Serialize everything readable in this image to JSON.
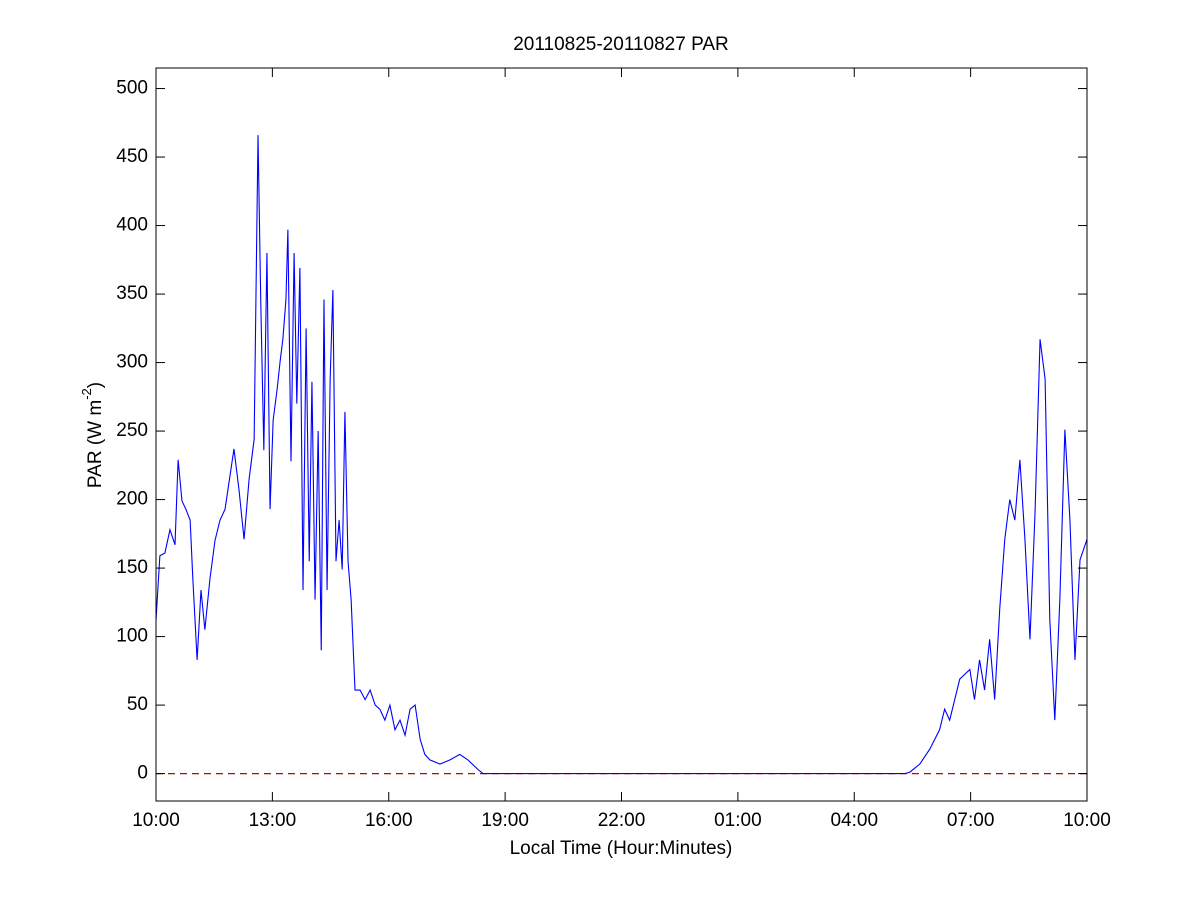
{
  "chart_data": {
    "type": "line",
    "title": "20110825-20110827 PAR",
    "xlabel": "Local Time (Hour:Minutes)",
    "ylabel": [
      "PAR (W m",
      "-2",
      ")"
    ],
    "color": "#0000ff",
    "xlim": [
      0,
      24
    ],
    "ylim": [
      -20,
      515
    ],
    "xticks": [
      {
        "value": 0,
        "label": "10:00"
      },
      {
        "value": 3,
        "label": "13:00"
      },
      {
        "value": 6,
        "label": "16:00"
      },
      {
        "value": 9,
        "label": "19:00"
      },
      {
        "value": 12,
        "label": "22:00"
      },
      {
        "value": 15,
        "label": "01:00"
      },
      {
        "value": 18,
        "label": "04:00"
      },
      {
        "value": 21,
        "label": "07:00"
      },
      {
        "value": 24,
        "label": "10:00"
      }
    ],
    "yticks": [
      0,
      50,
      100,
      150,
      200,
      250,
      300,
      350,
      400,
      450,
      500
    ],
    "zero_line": {
      "value": 0,
      "color": "#cc0000",
      "dashed": true
    },
    "x": [
      0.0,
      0.1,
      0.23,
      0.36,
      0.49,
      0.57,
      0.67,
      0.77,
      0.88,
      0.95,
      1.06,
      1.16,
      1.26,
      1.39,
      1.52,
      1.65,
      1.78,
      2.01,
      2.14,
      2.27,
      2.4,
      2.53,
      2.63,
      2.7,
      2.78,
      2.86,
      2.94,
      3.02,
      3.12,
      3.2,
      3.27,
      3.35,
      3.4,
      3.48,
      3.56,
      3.63,
      3.71,
      3.79,
      3.87,
      3.95,
      4.02,
      4.1,
      4.18,
      4.26,
      4.33,
      4.41,
      4.49,
      4.56,
      4.64,
      4.72,
      4.8,
      4.87,
      4.95,
      5.03,
      5.13,
      5.26,
      5.39,
      5.52,
      5.65,
      5.77,
      5.9,
      6.03,
      6.16,
      6.29,
      6.42,
      6.55,
      6.68,
      6.81,
      6.93,
      7.06,
      7.32,
      7.58,
      7.83,
      8.04,
      8.3,
      8.43,
      10,
      14,
      18,
      19.3,
      19.43,
      19.69,
      19.95,
      20.2,
      20.33,
      20.46,
      20.72,
      20.98,
      21.1,
      21.23,
      21.36,
      21.49,
      21.62,
      21.75,
      21.88,
      22.01,
      22.14,
      22.27,
      22.4,
      22.53,
      22.66,
      22.79,
      22.92,
      23.04,
      23.17,
      23.3,
      23.43,
      23.56,
      23.69,
      23.82,
      24.0
    ],
    "values": [
      112,
      159,
      161,
      178,
      167,
      229,
      199,
      193,
      185,
      142,
      83,
      134,
      105,
      142,
      170,
      185,
      193,
      237,
      207,
      171,
      215,
      244,
      466,
      345,
      236,
      380,
      193,
      258,
      280,
      301,
      317,
      346,
      397,
      228,
      380,
      270,
      369,
      134,
      325,
      155,
      286,
      127,
      250,
      90,
      346,
      134,
      288,
      353,
      155,
      185,
      149,
      264,
      155,
      127,
      61,
      61,
      54,
      61,
      50,
      47,
      39,
      50,
      32,
      39,
      28,
      47,
      50,
      25,
      14,
      10,
      7,
      10,
      14,
      10,
      3,
      0,
      0,
      0,
      0,
      0,
      1,
      7,
      18,
      32,
      47,
      39,
      69,
      76,
      54,
      83,
      61,
      98,
      54,
      120,
      171,
      200,
      185,
      229,
      171,
      98,
      190,
      317,
      288,
      113,
      39,
      127,
      251,
      185,
      83,
      156,
      171
    ]
  }
}
